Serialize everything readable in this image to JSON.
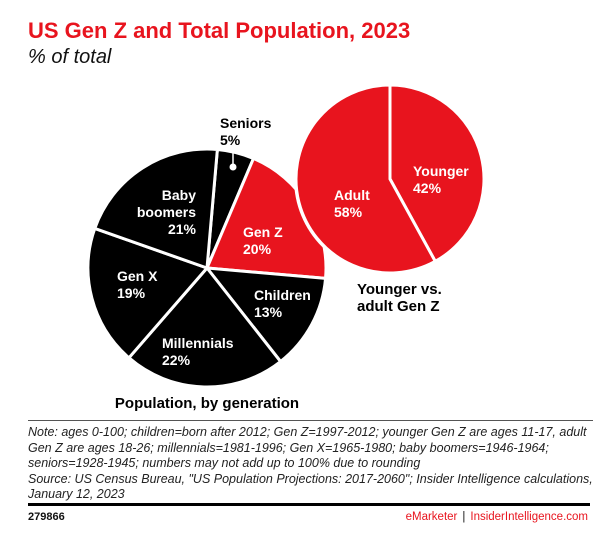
{
  "title": "US Gen Z and Total Population, 2023",
  "subtitle": "% of total",
  "chart_data": [
    {
      "type": "pie",
      "title": "Population, by generation",
      "categories": [
        "Seniors",
        "Gen Z",
        "Children",
        "Millennials",
        "Gen X",
        "Baby boomers"
      ],
      "label_lines": [
        [
          "Seniors",
          "5%"
        ],
        [
          "Gen Z",
          "20%"
        ],
        [
          "Children",
          "13%"
        ],
        [
          "Millennials",
          "22%"
        ],
        [
          "Gen X",
          "19%"
        ],
        [
          "Baby",
          "boomers",
          "21%"
        ]
      ],
      "values": [
        5,
        20,
        13,
        22,
        19,
        21
      ],
      "colors": [
        "#000000",
        "#e8141e",
        "#000000",
        "#000000",
        "#000000",
        "#000000"
      ]
    },
    {
      "type": "pie",
      "title_lines": [
        "Younger vs.",
        "adult Gen Z"
      ],
      "categories": [
        "Younger",
        "Adult"
      ],
      "label_lines": [
        [
          "Younger",
          "42%"
        ],
        [
          "Adult",
          "58%"
        ]
      ],
      "values": [
        42,
        58
      ],
      "colors": [
        "#e8141e",
        "#e8141e"
      ]
    }
  ],
  "note": "Note: ages 0-100; children=born after 2012; Gen Z=1997-2012; younger Gen Z are ages 11-17, adult Gen Z are ages 18-26; millennials=1981-1996; Gen X=1965-1980; baby boomers=1946-1964; seniors=1928-1945; numbers may not add up to 100% due to rounding",
  "source": "Source: US Census Bureau, \"US Population Projections: 2017-2060\"; Insider Intelligence calculations, January 12, 2023",
  "footer": {
    "id": "279866",
    "brand": "eMarketer",
    "site": "InsiderIntelligence.com",
    "separator": "|"
  }
}
